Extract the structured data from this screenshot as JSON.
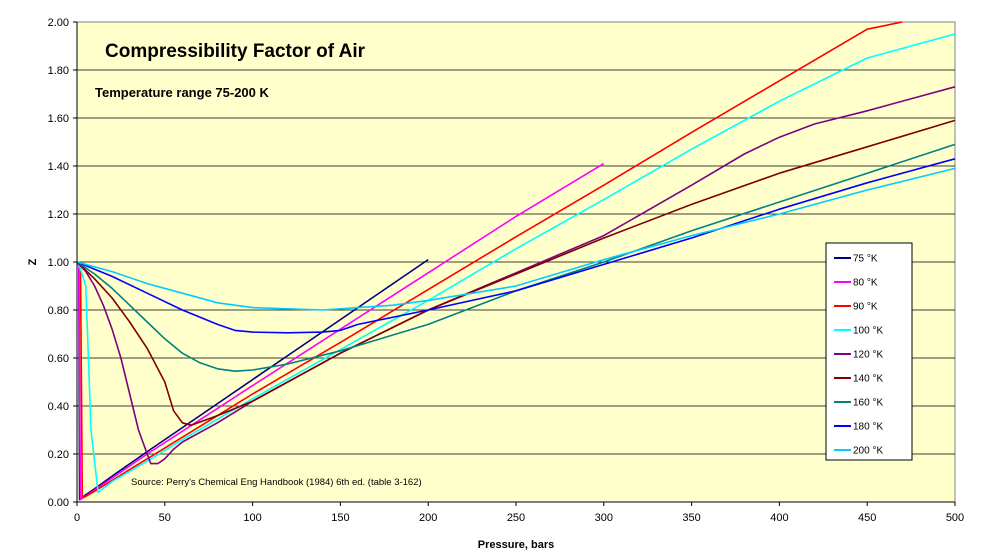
{
  "chart_data": {
    "type": "line",
    "title": "Compressibility Factor of Air",
    "subtitle": "Temperature range 75-200  K",
    "source": "Source: Perry's Chemical Eng Handbook (1984) 6th ed.  (table 3-162)",
    "xlabel": "Pressure, bars",
    "ylabel": "Z",
    "xlim": [
      0,
      500
    ],
    "ylim": [
      0,
      2.0
    ],
    "xticks": [
      "0",
      "50",
      "100",
      "150",
      "200",
      "250",
      "300",
      "350",
      "400",
      "450",
      "500"
    ],
    "yticks": [
      "0.00",
      "0.20",
      "0.40",
      "0.60",
      "0.80",
      "1.00",
      "1.20",
      "1.40",
      "1.60",
      "1.80",
      "2.00"
    ],
    "grid": "horizontal",
    "legend_position": "right",
    "series": [
      {
        "name": "75 °K",
        "color": "#000080",
        "points": [
          [
            0,
            1.0
          ],
          [
            1,
            0.985
          ],
          [
            1.5,
            0.01
          ],
          [
            5,
            0.03
          ],
          [
            10,
            0.055
          ],
          [
            20,
            0.108
          ],
          [
            40,
            0.21
          ],
          [
            60,
            0.31
          ],
          [
            80,
            0.41
          ],
          [
            100,
            0.51
          ],
          [
            125,
            0.635
          ],
          [
            150,
            0.76
          ],
          [
            175,
            0.885
          ],
          [
            200,
            1.01
          ]
        ]
      },
      {
        "name": "80 °K",
        "color": "#ff00ff",
        "points": [
          [
            0,
            1.0
          ],
          [
            1,
            0.985
          ],
          [
            2,
            0.01
          ],
          [
            5,
            0.025
          ],
          [
            10,
            0.05
          ],
          [
            20,
            0.1
          ],
          [
            40,
            0.2
          ],
          [
            60,
            0.295
          ],
          [
            80,
            0.39
          ],
          [
            100,
            0.485
          ],
          [
            150,
            0.72
          ],
          [
            200,
            0.955
          ],
          [
            250,
            1.19
          ],
          [
            300,
            1.41
          ]
        ]
      },
      {
        "name": "90 °K",
        "color": "#ff0000",
        "points": [
          [
            0,
            1.0
          ],
          [
            2,
            0.97
          ],
          [
            3,
            0.02
          ],
          [
            5,
            0.023
          ],
          [
            10,
            0.045
          ],
          [
            20,
            0.09
          ],
          [
            40,
            0.18
          ],
          [
            60,
            0.27
          ],
          [
            80,
            0.36
          ],
          [
            100,
            0.45
          ],
          [
            150,
            0.665
          ],
          [
            200,
            0.885
          ],
          [
            250,
            1.105
          ],
          [
            300,
            1.32
          ],
          [
            350,
            1.54
          ],
          [
            400,
            1.755
          ],
          [
            450,
            1.97
          ],
          [
            470,
            2.0
          ]
        ]
      },
      {
        "name": "100 °K",
        "color": "#00ffff",
        "points": [
          [
            0,
            1.0
          ],
          [
            2,
            0.97
          ],
          [
            5,
            0.9
          ],
          [
            8,
            0.3
          ],
          [
            12,
            0.04
          ],
          [
            20,
            0.085
          ],
          [
            40,
            0.17
          ],
          [
            60,
            0.26
          ],
          [
            80,
            0.345
          ],
          [
            100,
            0.43
          ],
          [
            150,
            0.635
          ],
          [
            200,
            0.84
          ],
          [
            250,
            1.055
          ],
          [
            300,
            1.26
          ],
          [
            350,
            1.47
          ],
          [
            400,
            1.67
          ],
          [
            450,
            1.85
          ],
          [
            500,
            1.95
          ]
        ]
      },
      {
        "name": "120 °K",
        "color": "#800080",
        "points": [
          [
            0,
            1.0
          ],
          [
            5,
            0.96
          ],
          [
            10,
            0.9
          ],
          [
            15,
            0.82
          ],
          [
            20,
            0.72
          ],
          [
            25,
            0.6
          ],
          [
            30,
            0.45
          ],
          [
            35,
            0.3
          ],
          [
            40,
            0.2
          ],
          [
            42,
            0.16
          ],
          [
            46,
            0.16
          ],
          [
            50,
            0.18
          ],
          [
            55,
            0.22
          ],
          [
            60,
            0.25
          ],
          [
            80,
            0.33
          ],
          [
            100,
            0.42
          ],
          [
            150,
            0.62
          ],
          [
            200,
            0.8
          ],
          [
            250,
            0.955
          ],
          [
            300,
            1.11
          ],
          [
            350,
            1.32
          ],
          [
            380,
            1.45
          ],
          [
            400,
            1.52
          ],
          [
            420,
            1.575
          ],
          [
            450,
            1.63
          ],
          [
            480,
            1.69
          ],
          [
            500,
            1.73
          ]
        ]
      },
      {
        "name": "140 °K",
        "color": "#800000",
        "points": [
          [
            0,
            1.0
          ],
          [
            10,
            0.93
          ],
          [
            20,
            0.85
          ],
          [
            30,
            0.75
          ],
          [
            40,
            0.64
          ],
          [
            50,
            0.5
          ],
          [
            55,
            0.38
          ],
          [
            60,
            0.33
          ],
          [
            65,
            0.32
          ],
          [
            80,
            0.36
          ],
          [
            100,
            0.42
          ],
          [
            150,
            0.62
          ],
          [
            200,
            0.8
          ],
          [
            250,
            0.95
          ],
          [
            300,
            1.1
          ],
          [
            350,
            1.24
          ],
          [
            400,
            1.37
          ],
          [
            450,
            1.48
          ],
          [
            500,
            1.59
          ]
        ]
      },
      {
        "name": "160 °K",
        "color": "#008080",
        "points": [
          [
            0,
            1.0
          ],
          [
            10,
            0.95
          ],
          [
            20,
            0.89
          ],
          [
            30,
            0.82
          ],
          [
            40,
            0.75
          ],
          [
            50,
            0.68
          ],
          [
            60,
            0.62
          ],
          [
            70,
            0.58
          ],
          [
            80,
            0.555
          ],
          [
            90,
            0.545
          ],
          [
            100,
            0.55
          ],
          [
            120,
            0.575
          ],
          [
            150,
            0.63
          ],
          [
            200,
            0.74
          ],
          [
            250,
            0.88
          ],
          [
            300,
            1.0
          ],
          [
            350,
            1.13
          ],
          [
            400,
            1.25
          ],
          [
            450,
            1.37
          ],
          [
            500,
            1.49
          ]
        ]
      },
      {
        "name": "180 °K",
        "color": "#0000ff",
        "points": [
          [
            0,
            1.0
          ],
          [
            10,
            0.97
          ],
          [
            20,
            0.94
          ],
          [
            40,
            0.87
          ],
          [
            60,
            0.8
          ],
          [
            80,
            0.74
          ],
          [
            90,
            0.715
          ],
          [
            100,
            0.708
          ],
          [
            120,
            0.705
          ],
          [
            140,
            0.708
          ],
          [
            150,
            0.715
          ],
          [
            160,
            0.74
          ],
          [
            200,
            0.8
          ],
          [
            250,
            0.88
          ],
          [
            300,
            0.99
          ],
          [
            350,
            1.1
          ],
          [
            400,
            1.22
          ],
          [
            450,
            1.33
          ],
          [
            500,
            1.43
          ]
        ]
      },
      {
        "name": "200 °K",
        "color": "#00ccff",
        "points": [
          [
            0,
            1.0
          ],
          [
            20,
            0.96
          ],
          [
            40,
            0.91
          ],
          [
            60,
            0.87
          ],
          [
            80,
            0.83
          ],
          [
            100,
            0.81
          ],
          [
            120,
            0.805
          ],
          [
            140,
            0.8
          ],
          [
            160,
            0.81
          ],
          [
            180,
            0.82
          ],
          [
            200,
            0.84
          ],
          [
            250,
            0.9
          ],
          [
            300,
            1.01
          ],
          [
            350,
            1.11
          ],
          [
            400,
            1.2
          ],
          [
            450,
            1.3
          ],
          [
            500,
            1.39
          ]
        ]
      }
    ]
  }
}
